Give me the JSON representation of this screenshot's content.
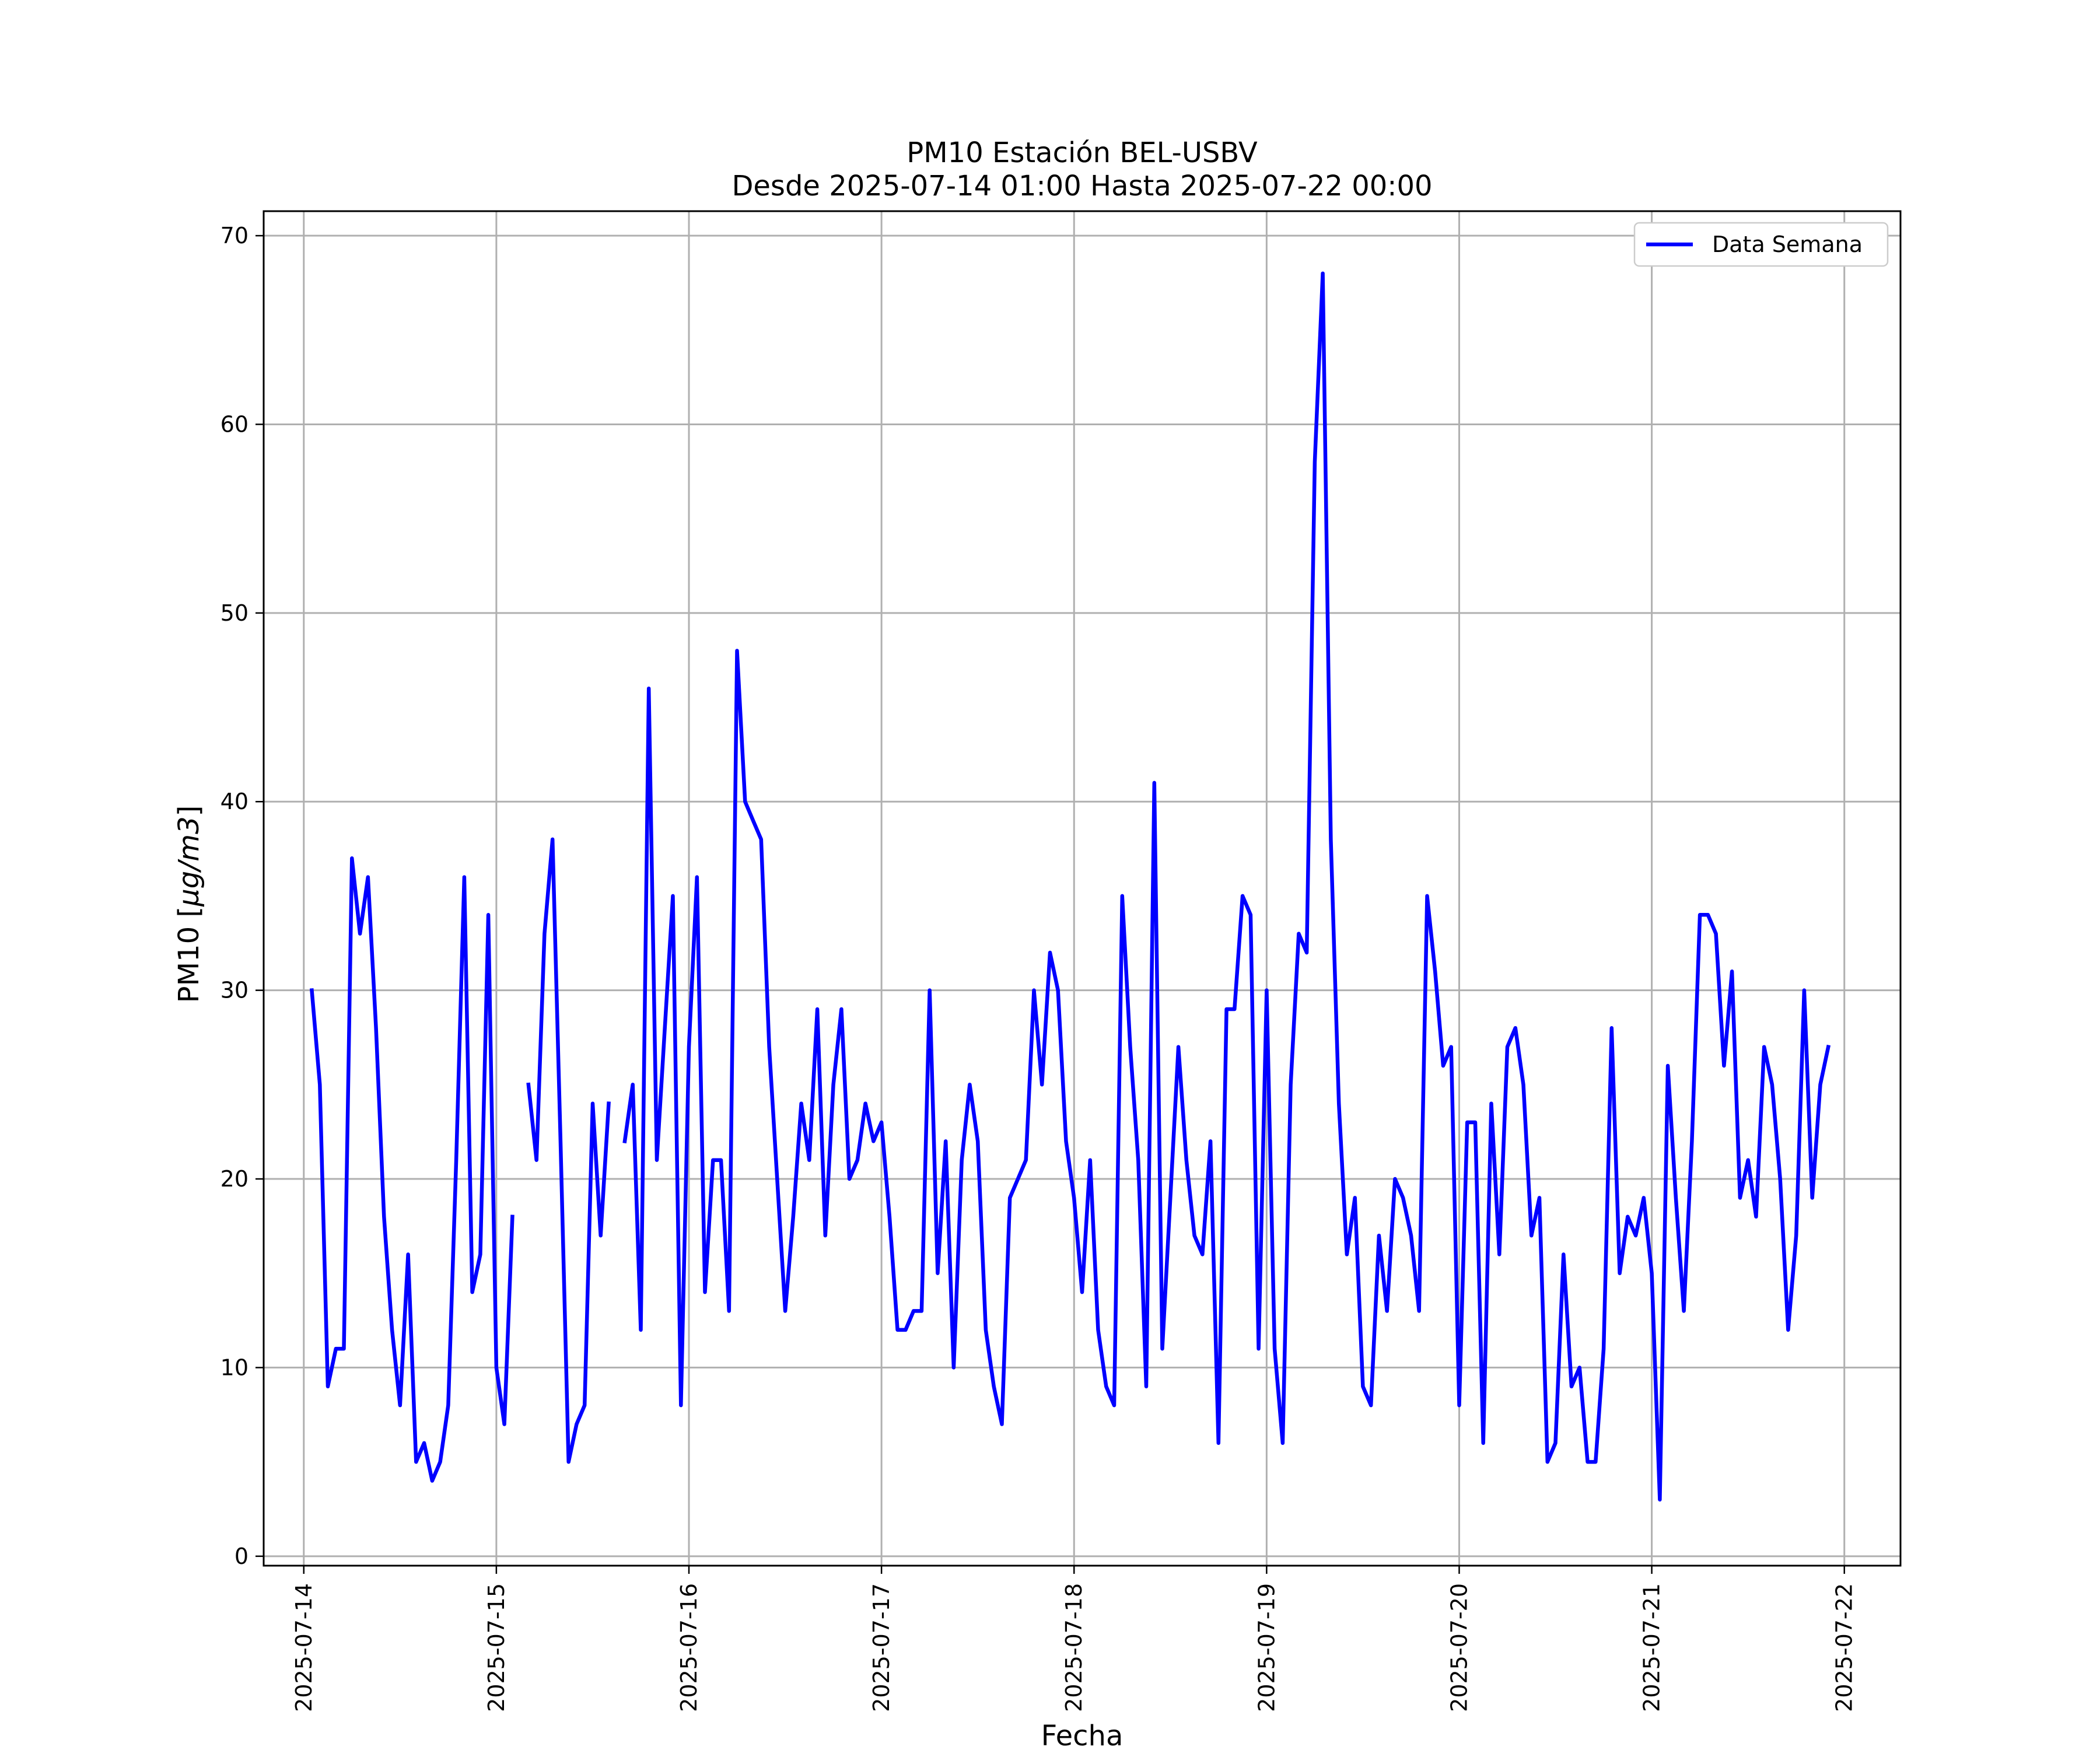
{
  "chart_data": {
    "type": "line",
    "title": "PM10 Estación BEL-USBV",
    "subtitle": "Desde 2025-07-14 01:00 Hasta 2025-07-22 00:00",
    "xlabel": "Fecha",
    "ylabel": "PM10 [μg/m3]",
    "ylim": [
      -0.5,
      71.3
    ],
    "yticks": [
      0,
      10,
      20,
      30,
      40,
      50,
      60,
      70
    ],
    "xlim": [
      "2025-07-13 19:00",
      "2025-07-22 07:00"
    ],
    "xticks": [
      "2025-07-14",
      "2025-07-15",
      "2025-07-16",
      "2025-07-17",
      "2025-07-18",
      "2025-07-19",
      "2025-07-20",
      "2025-07-21",
      "2025-07-22"
    ],
    "grid": true,
    "legend_position": "top-right",
    "series": [
      {
        "name": "Data Semana",
        "color": "#0000ff",
        "x_start": "2025-07-14 01:00",
        "x_step_hours": 1,
        "values": [
          30,
          25,
          9,
          11,
          11,
          37,
          33,
          36,
          28,
          18,
          12,
          8,
          16,
          5,
          6,
          4,
          5,
          8,
          21,
          36,
          14,
          16,
          34,
          10,
          7,
          18,
          null,
          25,
          21,
          33,
          38,
          22,
          5,
          7,
          8,
          24,
          17,
          24,
          null,
          22,
          25,
          12,
          46,
          21,
          28,
          35,
          8,
          27,
          36,
          14,
          21,
          21,
          13,
          48,
          40,
          39,
          38,
          27,
          20,
          13,
          18,
          24,
          21,
          29,
          17,
          25,
          29,
          20,
          21,
          24,
          22,
          23,
          18,
          12,
          12,
          13,
          13,
          30,
          15,
          22,
          10,
          21,
          25,
          22,
          12,
          9,
          7,
          19,
          20,
          21,
          30,
          25,
          32,
          30,
          22,
          19,
          14,
          21,
          12,
          9,
          8,
          35,
          27,
          21,
          9,
          41,
          11,
          19,
          27,
          21,
          17,
          16,
          22,
          6,
          29,
          29,
          35,
          34,
          11,
          30,
          11,
          6,
          25,
          33,
          32,
          58,
          68,
          38,
          24,
          16,
          19,
          9,
          8,
          17,
          13,
          20,
          19,
          17,
          13,
          35,
          31,
          26,
          27,
          8,
          23,
          23,
          6,
          24,
          16,
          27,
          28,
          25,
          17,
          19,
          5,
          6,
          16,
          9,
          10,
          5,
          5,
          11,
          28,
          15,
          18,
          17,
          19,
          15,
          3,
          26,
          19,
          13,
          22,
          34,
          34,
          33,
          26,
          31,
          19,
          21,
          18,
          27,
          25,
          20,
          12,
          17,
          30,
          19,
          25,
          27
        ]
      }
    ]
  }
}
